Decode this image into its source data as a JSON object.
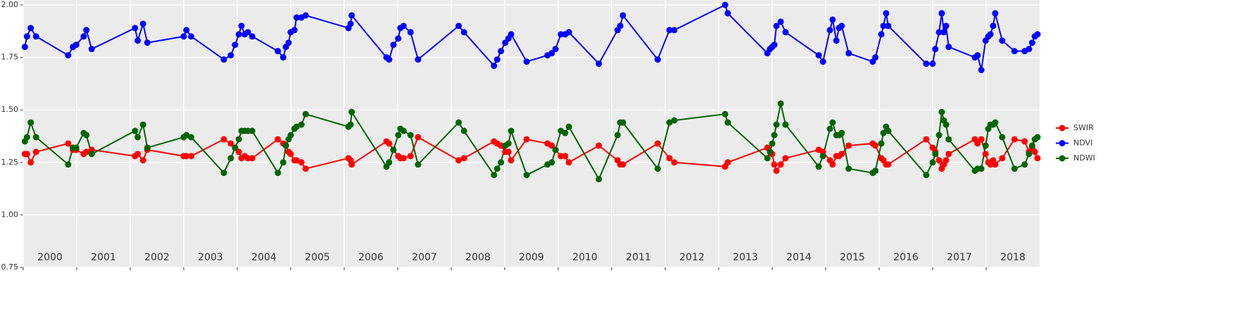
{
  "chart_data": {
    "type": "line",
    "x": [
      2000.03,
      2000.07,
      2000.14,
      2000.24,
      2000.84,
      2000.93,
      2000.99,
      2001.13,
      2001.18,
      2001.28,
      2002.09,
      2002.14,
      2002.24,
      2002.32,
      2003.0,
      2003.05,
      2003.14,
      2003.75,
      2003.88,
      2003.96,
      2004.03,
      2004.08,
      2004.14,
      2004.2,
      2004.28,
      2004.76,
      2004.86,
      2004.91,
      2004.96,
      2005.0,
      2005.07,
      2005.11,
      2005.2,
      2005.28,
      2006.08,
      2006.12,
      2006.14,
      2006.79,
      2006.84,
      2006.92,
      2007.01,
      2007.05,
      2007.11,
      2007.24,
      2007.38,
      2008.14,
      2008.24,
      2008.8,
      2008.86,
      2008.93,
      2009.01,
      2009.07,
      2009.12,
      2009.41,
      2009.8,
      2009.88,
      2009.95,
      2010.05,
      2010.13,
      2010.2,
      2010.76,
      2011.11,
      2011.16,
      2011.21,
      2011.86,
      2012.08,
      2012.17,
      2013.12,
      2013.17,
      2013.91,
      2013.96,
      2014.0,
      2014.04,
      2014.08,
      2014.16,
      2014.25,
      2014.87,
      2014.95,
      2015.08,
      2015.13,
      2015.2,
      2015.25,
      2015.3,
      2015.43,
      2015.88,
      2015.93,
      2016.04,
      2016.08,
      2016.13,
      2016.17,
      2016.88,
      2017.0,
      2017.05,
      2017.12,
      2017.17,
      2017.21,
      2017.25,
      2017.3,
      2017.79,
      2017.84,
      2017.91,
      2017.99,
      2018.04,
      2018.08,
      2018.13,
      2018.17,
      2018.3,
      2018.53,
      2018.72,
      2018.8,
      2018.86,
      2018.91,
      2018.96
    ],
    "series": [
      {
        "name": "SWIR",
        "color": "#ff0000",
        "values": [
          1.29,
          1.29,
          1.25,
          1.3,
          1.34,
          1.31,
          1.31,
          1.29,
          1.3,
          1.31,
          1.28,
          1.29,
          1.26,
          1.31,
          1.28,
          1.28,
          1.28,
          1.36,
          1.34,
          1.32,
          1.3,
          1.27,
          1.28,
          1.27,
          1.27,
          1.36,
          1.34,
          1.33,
          1.3,
          1.29,
          1.26,
          1.26,
          1.25,
          1.22,
          1.27,
          1.26,
          1.24,
          1.35,
          1.34,
          1.31,
          1.28,
          1.27,
          1.27,
          1.28,
          1.37,
          1.26,
          1.27,
          1.35,
          1.34,
          1.33,
          1.3,
          1.3,
          1.26,
          1.36,
          1.34,
          1.33,
          1.31,
          1.28,
          1.28,
          1.25,
          1.33,
          1.26,
          1.24,
          1.24,
          1.34,
          1.27,
          1.25,
          1.23,
          1.25,
          1.32,
          1.3,
          1.29,
          1.24,
          1.21,
          1.24,
          1.27,
          1.31,
          1.3,
          1.26,
          1.24,
          1.28,
          1.28,
          1.29,
          1.33,
          1.34,
          1.33,
          1.27,
          1.26,
          1.24,
          1.24,
          1.36,
          1.32,
          1.3,
          1.26,
          1.22,
          1.24,
          1.26,
          1.29,
          1.36,
          1.34,
          1.36,
          1.29,
          1.25,
          1.24,
          1.26,
          1.24,
          1.27,
          1.36,
          1.35,
          1.3,
          1.32,
          1.3,
          1.27
        ]
      },
      {
        "name": "NDVI",
        "color": "#0000ff",
        "values": [
          1.8,
          1.85,
          1.89,
          1.85,
          1.76,
          1.8,
          1.81,
          1.85,
          1.88,
          1.79,
          1.89,
          1.83,
          1.91,
          1.82,
          1.85,
          1.88,
          1.85,
          1.74,
          1.76,
          1.81,
          1.86,
          1.9,
          1.86,
          1.87,
          1.85,
          1.78,
          1.75,
          1.8,
          1.82,
          1.87,
          1.88,
          1.94,
          1.94,
          1.95,
          1.89,
          1.91,
          1.95,
          1.75,
          1.74,
          1.81,
          1.84,
          1.89,
          1.9,
          1.87,
          1.74,
          1.9,
          1.87,
          1.71,
          1.74,
          1.78,
          1.82,
          1.84,
          1.86,
          1.73,
          1.76,
          1.77,
          1.79,
          1.86,
          1.86,
          1.87,
          1.72,
          1.88,
          1.9,
          1.95,
          1.74,
          1.88,
          1.88,
          2.0,
          1.96,
          1.77,
          1.79,
          1.8,
          1.81,
          1.9,
          1.92,
          1.87,
          1.76,
          1.73,
          1.88,
          1.93,
          1.83,
          1.89,
          1.9,
          1.77,
          1.73,
          1.75,
          1.86,
          1.9,
          1.96,
          1.9,
          1.72,
          1.72,
          1.79,
          1.87,
          1.96,
          1.87,
          1.9,
          1.8,
          1.75,
          1.76,
          1.69,
          1.83,
          1.85,
          1.86,
          1.9,
          1.96,
          1.83,
          1.78,
          1.78,
          1.79,
          1.82,
          1.85,
          1.86
        ]
      },
      {
        "name": "NDWI",
        "color": "#006400",
        "values": [
          1.35,
          1.37,
          1.44,
          1.37,
          1.24,
          1.32,
          1.32,
          1.39,
          1.38,
          1.29,
          1.4,
          1.37,
          1.43,
          1.32,
          1.37,
          1.38,
          1.37,
          1.2,
          1.27,
          1.32,
          1.36,
          1.4,
          1.4,
          1.4,
          1.4,
          1.2,
          1.25,
          1.33,
          1.36,
          1.38,
          1.41,
          1.42,
          1.43,
          1.48,
          1.42,
          1.43,
          1.49,
          1.23,
          1.25,
          1.31,
          1.38,
          1.41,
          1.4,
          1.38,
          1.24,
          1.44,
          1.4,
          1.19,
          1.22,
          1.25,
          1.33,
          1.34,
          1.4,
          1.19,
          1.24,
          1.25,
          1.31,
          1.4,
          1.39,
          1.42,
          1.17,
          1.38,
          1.44,
          1.44,
          1.22,
          1.44,
          1.45,
          1.48,
          1.44,
          1.27,
          1.3,
          1.34,
          1.38,
          1.43,
          1.53,
          1.43,
          1.23,
          1.28,
          1.41,
          1.44,
          1.38,
          1.38,
          1.39,
          1.22,
          1.2,
          1.21,
          1.34,
          1.39,
          1.42,
          1.4,
          1.19,
          1.25,
          1.29,
          1.38,
          1.49,
          1.45,
          1.43,
          1.36,
          1.21,
          1.22,
          1.22,
          1.33,
          1.41,
          1.43,
          1.43,
          1.44,
          1.37,
          1.22,
          1.24,
          1.29,
          1.33,
          1.36,
          1.37
        ]
      }
    ],
    "xlim": [
      2000,
      2019
    ],
    "xticks": [
      2000,
      2001,
      2002,
      2003,
      2004,
      2005,
      2006,
      2007,
      2008,
      2009,
      2010,
      2011,
      2012,
      2013,
      2014,
      2015,
      2016,
      2017,
      2018
    ],
    "ylim": [
      0.75,
      2.0
    ],
    "yticks": [
      {
        "value": 0.75,
        "label": "0.75"
      },
      {
        "value": 1,
        "label": "1.00"
      },
      {
        "value": 1.25,
        "label": "1.25"
      },
      {
        "value": 1.5,
        "label": "1.50"
      },
      {
        "value": 1.75,
        "label": "1.75"
      },
      {
        "value": 2,
        "label": "2.00"
      }
    ],
    "annotations": [
      "2000",
      "2001",
      "2002",
      "2003",
      "2004",
      "2005",
      "2006",
      "2007",
      "2008",
      "2009",
      "2010",
      "2011",
      "2012",
      "2013",
      "2014",
      "2015",
      "2016",
      "2017",
      "2018"
    ],
    "grid": true,
    "legend": "right"
  }
}
